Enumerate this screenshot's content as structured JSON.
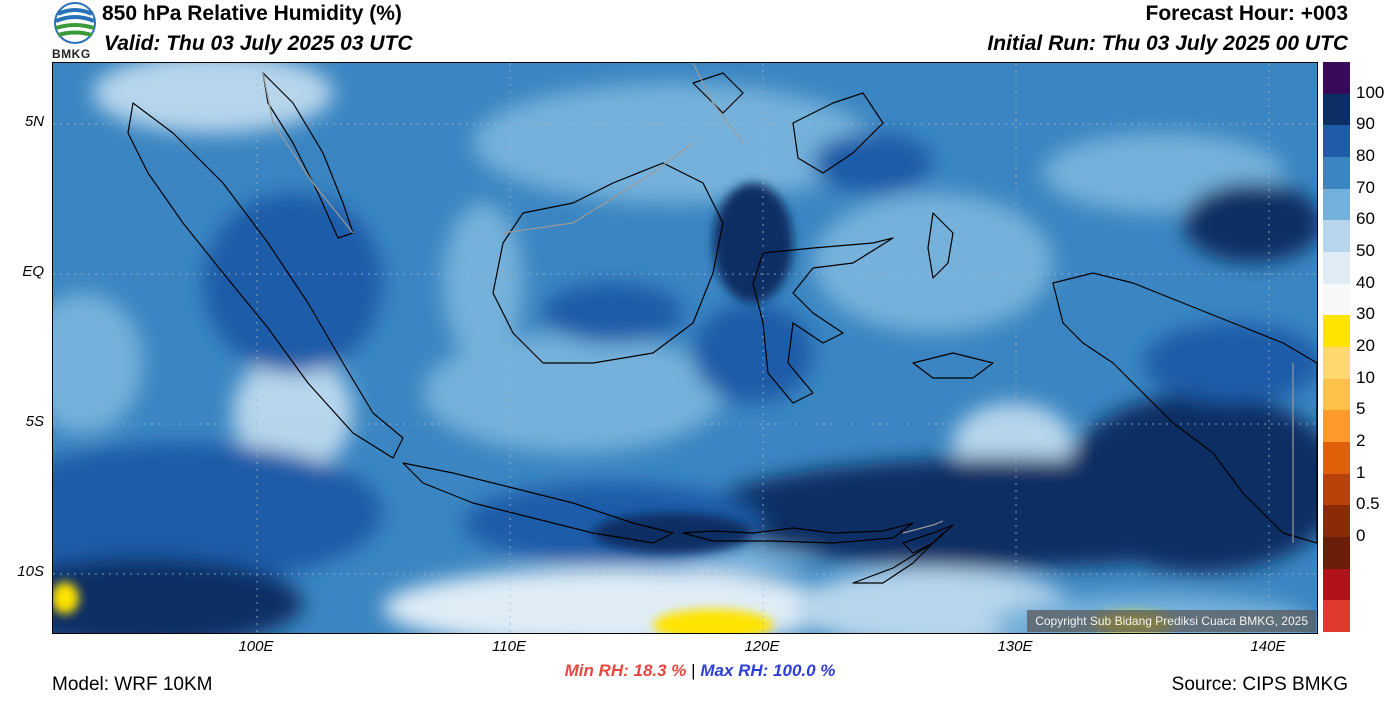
{
  "header": {
    "title": "850 hPa Relative Humidity (%)",
    "valid": "Valid: Thu 03 July 2025 03 UTC",
    "forecast_hour": "Forecast Hour: +003",
    "initial_run": "Initial Run: Thu 03 July 2025 00 UTC",
    "logo_text": "BMKG"
  },
  "axes": {
    "lat_labels": [
      "5N",
      "EQ",
      "5S",
      "10S"
    ],
    "lon_labels": [
      "100E",
      "110E",
      "120E",
      "130E",
      "140E"
    ]
  },
  "stats": {
    "min": "Min RH:  18.3 %",
    "separator": "|",
    "max": "Max RH: 100.0 %"
  },
  "footer": {
    "model": "Model: WRF 10KM",
    "source": "Source: CIPS BMKG",
    "copyright": "Copyright Sub Bidang Prediksi Cuaca BMKG, 2025"
  },
  "colorbar": {
    "labels": [
      "100",
      "90",
      "80",
      "70",
      "60",
      "50",
      "40",
      "30",
      "20",
      "10",
      "5",
      "2",
      "1",
      "0.5",
      "0"
    ],
    "colors": [
      "#3a0a5a",
      "#0b2f64",
      "#1f5ba8",
      "#3b86c2",
      "#74b1da",
      "#b7d6ec",
      "#dfecf6",
      "#f8f8f8",
      "#ffe400",
      "#ffd870",
      "#ffc04a",
      "#ff9a2a",
      "#e0600a",
      "#b8420a",
      "#8a2a06",
      "#6a1e0a",
      "#b0141a",
      "#e03a2c"
    ]
  }
}
